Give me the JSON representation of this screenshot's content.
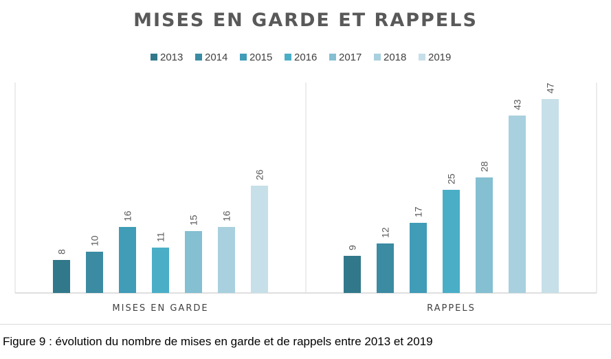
{
  "chart_data": {
    "type": "bar",
    "title": "MISES EN GARDE ET RAPPELS",
    "categories": [
      "MISES EN GARDE",
      "RAPPELS"
    ],
    "series": [
      {
        "name": "2013",
        "color": "#31788a",
        "values": [
          8,
          9
        ]
      },
      {
        "name": "2014",
        "color": "#3b8ba3",
        "values": [
          10,
          12
        ]
      },
      {
        "name": "2015",
        "color": "#409cb7",
        "values": [
          16,
          17
        ]
      },
      {
        "name": "2016",
        "color": "#4aaec7",
        "values": [
          11,
          25
        ]
      },
      {
        "name": "2017",
        "color": "#84bfd2",
        "values": [
          15,
          28
        ]
      },
      {
        "name": "2018",
        "color": "#a9d0de",
        "values": [
          16,
          43
        ]
      },
      {
        "name": "2019",
        "color": "#c7dfe8",
        "values": [
          26,
          47
        ]
      }
    ],
    "xlabel": "",
    "ylabel": "",
    "ylim": [
      0,
      50
    ],
    "grid": false,
    "legend": "top-center"
  },
  "caption": "Figure 9 : évolution du nombre de mises en garde et de rappels entre 2013 et 2019"
}
